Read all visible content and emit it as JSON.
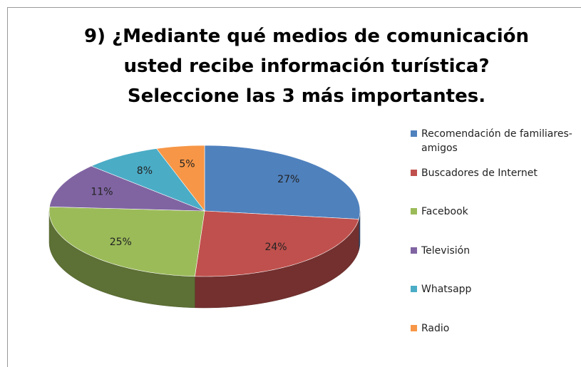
{
  "chart_data": {
    "type": "pie3d",
    "title": "9) ¿Mediante qué medios de comunicación usted recibe información turística? Seleccione las 3 más importantes.",
    "categories": [
      "Recomendación de familiares-amigos",
      "Buscadores de Internet",
      "Facebook",
      "Televisión",
      "Whatsapp",
      "Radio"
    ],
    "values": [
      27,
      24,
      25,
      11,
      8,
      5
    ],
    "value_labels": [
      "27%",
      "24%",
      "25%",
      "11%",
      "8%",
      "5%"
    ],
    "colors": [
      "#4f81bd",
      "#c0504d",
      "#9bbb59",
      "#8064a2",
      "#4bacc6",
      "#f79646"
    ],
    "legend": "right"
  }
}
